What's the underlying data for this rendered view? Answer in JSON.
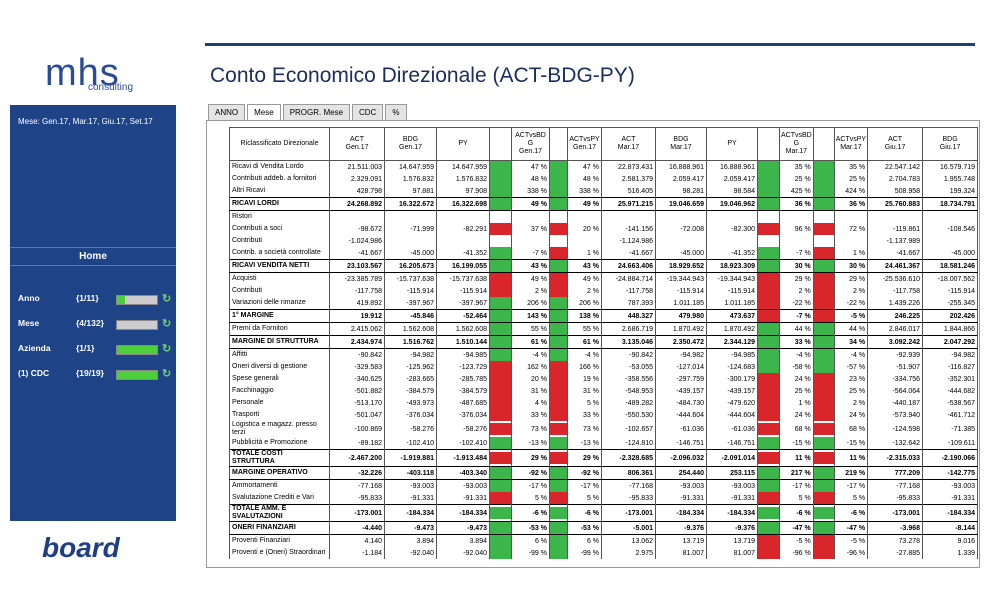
{
  "logo": {
    "name": "mhs",
    "tagline": "consulting"
  },
  "sidebar": {
    "period": "Mese: Gen.17, Mar.17, Giu.17, Set.17",
    "home": "Home",
    "selectors": [
      {
        "label": "Anno",
        "count": "{1/11}"
      },
      {
        "label": "Mese",
        "count": "{4/132}"
      },
      {
        "label": "Azienda",
        "count": "{1/1}"
      },
      {
        "label": "(1) CDC",
        "count": "{19/19}"
      }
    ]
  },
  "footer_logo": "board",
  "title": "Conto Economico Direzionale (ACT-BDG-PY)",
  "tabs": [
    "ANNO",
    "Mese",
    "PROGR. Mese",
    "CDC",
    "%"
  ],
  "active_tab": "Mese",
  "flag_colors": {
    "g": "#3cb54a",
    "r": "#d9262b"
  },
  "table": {
    "headers": [
      [
        "Riclassificato Direzionale"
      ],
      [
        "ACT",
        "Gen.17"
      ],
      [
        "BDG",
        "Gen.17"
      ],
      [
        "PY"
      ],
      [
        "ACTvsBD",
        "G",
        "Gen.17"
      ],
      [
        "ACTvsPY",
        "Gen.17"
      ],
      [
        "ACT",
        "Mar.17"
      ],
      [
        "BDG",
        "Mar.17"
      ],
      [
        "PY"
      ],
      [
        "ACTvsBD",
        "G",
        "Mar.17"
      ],
      [
        "ACTvsPY",
        "Mar.17"
      ],
      [
        "ACT",
        "Giu.17"
      ],
      [
        "BDG",
        "Giu.17"
      ]
    ],
    "rows": [
      {
        "label": "Ricavi di Vendita Lordo",
        "cells": [
          "21.511.003",
          "14.647.959",
          "14.647.959",
          "47 %",
          "47 %",
          "22.873.431",
          "16.888.961",
          "16.888.961",
          "35 %",
          "35 %",
          "22.547.142",
          "16.579.719"
        ],
        "flags": [
          "g",
          "g",
          "g",
          "g"
        ]
      },
      {
        "label": "Contributi addeb. a fornitori",
        "cells": [
          "2.329.091",
          "1.576.832",
          "1.576.832",
          "48 %",
          "48 %",
          "2.581.379",
          "2.059.417",
          "2.059.417",
          "25 %",
          "25 %",
          "2.704.783",
          "1.955.748"
        ],
        "flags": [
          "g",
          "g",
          "g",
          "g"
        ]
      },
      {
        "label": "Altri Ricavi",
        "cells": [
          "428.798",
          "97.881",
          "97.908",
          "338 %",
          "338 %",
          "516.405",
          "98.281",
          "98.584",
          "425 %",
          "424 %",
          "508.958",
          "199.324"
        ],
        "flags": [
          "g",
          "g",
          "g",
          "g"
        ]
      },
      {
        "label": "RICAVI LORDI",
        "bold": true,
        "cells": [
          "24.268.892",
          "16.322.672",
          "16.322.698",
          "49 %",
          "49 %",
          "25.971.215",
          "19.046.659",
          "19.046.962",
          "36 %",
          "36 %",
          "25.760.883",
          "18.734.791"
        ],
        "flags": [
          "g",
          "g",
          "g",
          "g"
        ]
      },
      {
        "label": "Ristori",
        "cells": [
          null,
          null,
          null,
          null,
          null,
          null,
          null,
          null,
          null,
          null,
          null,
          null
        ],
        "flags": [
          null,
          null,
          null,
          null
        ]
      },
      {
        "label": "Contributi a soci",
        "cells": [
          "-98.672",
          "-71.999",
          "-82.291",
          "37 %",
          "20 %",
          "-141.156",
          "-72.008",
          "-82.300",
          "96 %",
          "72 %",
          "-119.861",
          "-108.546"
        ],
        "flags": [
          "r",
          "r",
          "r",
          "r"
        ]
      },
      {
        "label": "Contributi",
        "cells": [
          "-1.024.986",
          null,
          null,
          null,
          null,
          "-1.124.986",
          null,
          null,
          null,
          null,
          "-1.137.989",
          null
        ],
        "flags": [
          null,
          null,
          null,
          null
        ]
      },
      {
        "label": "Contrib. a società controllate",
        "cells": [
          "-41.667",
          "-45.000",
          "-41.352",
          "-7 %",
          "1 %",
          "-41.667",
          "-45.000",
          "-41.352",
          "-7 %",
          "1 %",
          "-41.667",
          "-45.000"
        ],
        "flags": [
          "g",
          "r",
          "g",
          "r"
        ]
      },
      {
        "label": "RICAVI VENDITA NETTI",
        "bold": true,
        "cells": [
          "23.103.567",
          "16.205.673",
          "16.199.055",
          "43 %",
          "43 %",
          "24.663.406",
          "18.929.652",
          "18.923.309",
          "30 %",
          "30 %",
          "24.461.367",
          "18.581.246"
        ],
        "flags": [
          "g",
          "g",
          "g",
          "g"
        ]
      },
      {
        "label": "Acquisti",
        "cells": [
          "-23.385.789",
          "-15.737.638",
          "-15.737.638",
          "49 %",
          "49 %",
          "-24.884.714",
          "-19.344.943",
          "-19.344.943",
          "29 %",
          "29 %",
          "-25.536.610",
          "-18.007.562"
        ],
        "flags": [
          "r",
          "r",
          "r",
          "r"
        ]
      },
      {
        "label": "Contributi",
        "cells": [
          "-117.758",
          "-115.914",
          "-115.914",
          "2 %",
          "2 %",
          "-117.758",
          "-115.914",
          "-115.914",
          "2 %",
          "2 %",
          "-117.758",
          "-115.914"
        ],
        "flags": [
          "r",
          "r",
          "r",
          "r"
        ]
      },
      {
        "label": "Variazioni delle rimanze",
        "cells": [
          "419.892",
          "-397.967",
          "-397.967",
          "206 %",
          "206 %",
          "787.393",
          "1.011.185",
          "1.011.185",
          "-22 %",
          "-22 %",
          "1.439.226",
          "-255.345"
        ],
        "flags": [
          "g",
          "g",
          "r",
          "r"
        ]
      },
      {
        "label": "1° MARGINE",
        "bold": true,
        "cells": [
          "19.912",
          "-45.846",
          "-52.464",
          "143 %",
          "138 %",
          "448.327",
          "479.980",
          "473.637",
          "-7 %",
          "-5 %",
          "246.225",
          "202.426"
        ],
        "flags": [
          "g",
          "g",
          "r",
          "r"
        ]
      },
      {
        "label": "Premi da Fornitori",
        "cells": [
          "2.415.062",
          "1.562.608",
          "1.562.608",
          "55 %",
          "55 %",
          "2.686.719",
          "1.870.492",
          "1.870.492",
          "44 %",
          "44 %",
          "2.846.017",
          "1.844.866"
        ],
        "flags": [
          "g",
          "g",
          "g",
          "g"
        ]
      },
      {
        "label": "MARGINE DI STRUTTURA",
        "bold": true,
        "cells": [
          "2.434.974",
          "1.516.762",
          "1.510.144",
          "61 %",
          "61 %",
          "3.135.046",
          "2.350.472",
          "2.344.129",
          "33 %",
          "34 %",
          "3.092.242",
          "2.047.292"
        ],
        "flags": [
          "g",
          "g",
          "g",
          "g"
        ]
      },
      {
        "label": "Affitti",
        "cells": [
          "-90.842",
          "-94.982",
          "-94.985",
          "-4 %",
          "-4 %",
          "-90.842",
          "-94.982",
          "-94.985",
          "-4 %",
          "-4 %",
          "-92.939",
          "-94.982"
        ],
        "flags": [
          "g",
          "g",
          "g",
          "g"
        ]
      },
      {
        "label": "Oneri diversi di gestione",
        "cells": [
          "-329.583",
          "-125.962",
          "-123.729",
          "162 %",
          "166 %",
          "-53.055",
          "-127.014",
          "-124.683",
          "-58 %",
          "-57 %",
          "-51.907",
          "-116.827"
        ],
        "flags": [
          "r",
          "r",
          "g",
          "g"
        ]
      },
      {
        "label": "Spese generali",
        "cells": [
          "-340.625",
          "-283.665",
          "-285.785",
          "20 %",
          "19 %",
          "-358.556",
          "-297.759",
          "-300.179",
          "24 %",
          "23 %",
          "-334.756",
          "-352.301"
        ],
        "flags": [
          "r",
          "r",
          "r",
          "r"
        ]
      },
      {
        "label": "Facchinaggio",
        "cells": [
          "-501.882",
          "-384.579",
          "-384.579",
          "31 %",
          "31 %",
          "-548.953",
          "-439.157",
          "-439.157",
          "25 %",
          "25 %",
          "-564.064",
          "-444.682"
        ],
        "flags": [
          "r",
          "r",
          "r",
          "r"
        ]
      },
      {
        "label": "Personale",
        "cells": [
          "-513.170",
          "-493.973",
          "-487.685",
          "4 %",
          "5 %",
          "-489.282",
          "-484.730",
          "-479.620",
          "1 %",
          "2 %",
          "-440.187",
          "-538.567"
        ],
        "flags": [
          "r",
          "r",
          "r",
          "r"
        ]
      },
      {
        "label": "Trasporti",
        "cells": [
          "-501.047",
          "-376.034",
          "-376.034",
          "33 %",
          "33 %",
          "-550.530",
          "-444.604",
          "-444.604",
          "24 %",
          "24 %",
          "-573.940",
          "-461.712"
        ],
        "flags": [
          "r",
          "r",
          "r",
          "r"
        ]
      },
      {
        "label": "Logistica e magazz. presso terzi",
        "cells": [
          "-100.869",
          "-58.276",
          "-58.276",
          "73 %",
          "73 %",
          "-102.657",
          "-61.036",
          "-61.036",
          "68 %",
          "68 %",
          "-124.598",
          "-71.385"
        ],
        "flags": [
          "r",
          "r",
          "r",
          "r"
        ]
      },
      {
        "label": "Pubblicità e Promozione",
        "cells": [
          "-89.182",
          "-102.410",
          "-102.410",
          "-13 %",
          "-13 %",
          "-124.810",
          "-146.751",
          "-146.751",
          "-15 %",
          "-15 %",
          "-132.642",
          "-109.611"
        ],
        "flags": [
          "g",
          "g",
          "g",
          "g"
        ]
      },
      {
        "label": "TOTALE COSTI STRUTTURA",
        "bold": true,
        "cells": [
          "-2.467.200",
          "-1.919.881",
          "-1.913.484",
          "29 %",
          "29 %",
          "-2.328.685",
          "-2.096.032",
          "-2.091.014",
          "11 %",
          "11 %",
          "-2.315.033",
          "-2.190.066"
        ],
        "flags": [
          "r",
          "r",
          "r",
          "r"
        ]
      },
      {
        "label": "MARGINE OPERATIVO",
        "bold": true,
        "cells": [
          "-32.226",
          "-403.118",
          "-403.340",
          "-92 %",
          "-92 %",
          "806.361",
          "254.440",
          "253.115",
          "217 %",
          "219 %",
          "777.209",
          "-142.775"
        ],
        "flags": [
          "g",
          "g",
          "g",
          "g"
        ]
      },
      {
        "label": "Ammortamenti",
        "cells": [
          "-77.168",
          "-93.003",
          "-93.003",
          "-17 %",
          "-17 %",
          "-77.168",
          "-93.003",
          "-93.003",
          "-17 %",
          "-17 %",
          "-77.168",
          "-93.003"
        ],
        "flags": [
          "g",
          "g",
          "g",
          "g"
        ]
      },
      {
        "label": "Svalutazione Crediti e Vari",
        "cells": [
          "-95.833",
          "-91.331",
          "-91.331",
          "5 %",
          "5 %",
          "-95.833",
          "-91.331",
          "-91.331",
          "5 %",
          "5 %",
          "-95.833",
          "-91.331"
        ],
        "flags": [
          "r",
          "r",
          "r",
          "r"
        ]
      },
      {
        "label": "TOTALE AMM. E SVALUTAZIONI",
        "bold": true,
        "cells": [
          "-173.001",
          "-184.334",
          "-184.334",
          "-6 %",
          "-6 %",
          "-173.001",
          "-184.334",
          "-184.334",
          "-6 %",
          "-6 %",
          "-173.001",
          "-184.334"
        ],
        "flags": [
          "g",
          "g",
          "g",
          "g"
        ]
      },
      {
        "label": "ONERI FINANZIARI",
        "bold": true,
        "cells": [
          "-4.440",
          "-9.473",
          "-9.473",
          "-53 %",
          "-53 %",
          "-5.001",
          "-9.376",
          "-9.376",
          "-47 %",
          "-47 %",
          "-3.968",
          "-8.144"
        ],
        "flags": [
          "g",
          "g",
          "g",
          "g"
        ]
      },
      {
        "label": "Proventi Finanziari",
        "cells": [
          "4.140",
          "3.894",
          "3.894",
          "6 %",
          "6 %",
          "13.062",
          "13.719",
          "13.719",
          "-5 %",
          "-5 %",
          "73.278",
          "9.016"
        ],
        "flags": [
          "g",
          "g",
          "r",
          "r"
        ]
      },
      {
        "label": "Proventi e (Oneri) Straordinari",
        "cells": [
          "-1.184",
          "-92.040",
          "-92.040",
          "-99 %",
          "-99 %",
          "2.975",
          "81.007",
          "81.007",
          "-96 %",
          "-96 %",
          "-27.885",
          "1.339"
        ],
        "flags": [
          "g",
          "g",
          "r",
          "r"
        ]
      }
    ]
  }
}
